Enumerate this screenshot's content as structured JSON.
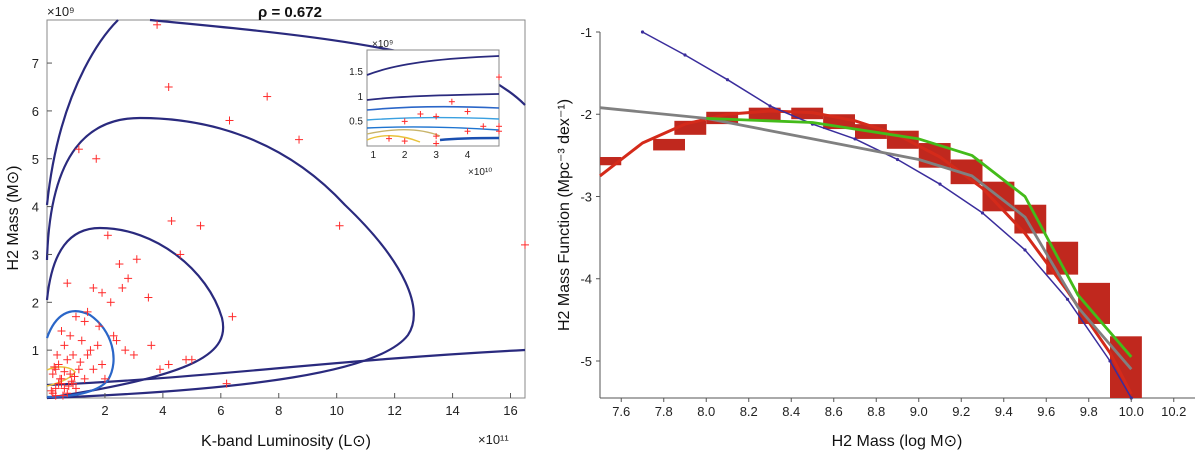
{
  "chart_data": [
    {
      "type": "scatter",
      "title": "ρ = 0.672",
      "xlabel": "K-band Luminosity (L⊙)",
      "ylabel": "H2 Mass (M⊙)",
      "x_exponent": "×10¹¹",
      "y_exponent": "×10⁹",
      "xlim": [
        0,
        16.5
      ],
      "ylim": [
        0,
        7.9
      ],
      "xticks": [
        "2",
        "4",
        "6",
        "8",
        "10",
        "12",
        "14",
        "16"
      ],
      "yticks": [
        "1",
        "2",
        "3",
        "4",
        "5",
        "6",
        "7"
      ],
      "grid": false,
      "colors": {
        "points": "#ff2a2a",
        "outer_contour": "#2a2a7e",
        "inner_contour": "#2a66c8",
        "core_contour": "#e8c23a"
      },
      "series": [
        {
          "marker": "plus",
          "x": [
            3.8,
            4.2,
            1.1,
            1.7,
            6.3,
            7.6,
            8.7,
            10.1,
            16.5,
            4.3,
            5.3,
            6.4,
            2.1,
            4.6,
            3.1,
            2.5,
            2.8,
            2.6,
            3.5,
            1.6,
            1.9,
            2.2,
            1.4,
            0.7,
            1.0,
            1.3,
            0.5,
            0.8,
            1.8,
            2.4,
            3.0,
            6.2,
            5.0,
            4.2,
            3.6,
            3.9,
            4.8,
            2.7,
            1.2,
            1.5,
            0.9,
            0.6,
            0.4,
            0.3,
            0.2,
            0.7,
            1.1,
            0.5,
            1.6,
            2.0,
            0.3,
            0.8,
            0.4,
            1.3,
            0.6,
            0.9,
            1.9,
            0.2,
            0.5,
            1.0,
            0.7,
            2.3,
            1.4,
            0.35,
            0.45,
            0.25,
            0.6,
            0.85,
            1.15,
            0.15,
            0.55,
            0.75,
            1.75,
            0.3,
            0.95
          ],
          "y": [
            7.8,
            6.5,
            5.2,
            5.0,
            5.8,
            6.3,
            5.4,
            3.6,
            3.2,
            3.7,
            3.6,
            1.7,
            3.4,
            3.0,
            2.9,
            2.8,
            2.5,
            2.3,
            2.1,
            2.3,
            2.2,
            2.0,
            1.8,
            2.4,
            1.7,
            1.6,
            1.4,
            1.3,
            1.5,
            1.2,
            0.9,
            0.3,
            0.8,
            0.7,
            1.1,
            0.6,
            0.8,
            1.0,
            1.2,
            1.0,
            0.9,
            1.1,
            0.7,
            0.6,
            0.5,
            0.8,
            0.6,
            0.3,
            0.6,
            0.4,
            0.2,
            0.5,
            0.3,
            0.4,
            0.2,
            0.3,
            0.7,
            0.1,
            0.4,
            0.2,
            0.1,
            1.3,
            0.9,
            0.9,
            0.4,
            0.65,
            0.55,
            0.35,
            0.75,
            0.15,
            0.05,
            0.25,
            1.1,
            0.05,
            0.45
          ]
        }
      ],
      "inset": {
        "x_exponent": "×10¹⁰",
        "y_exponent": "×10⁹",
        "xlim": [
          0.8,
          5.0
        ],
        "ylim": [
          0,
          1.95
        ],
        "xticks": [
          "1",
          "2",
          "3",
          "4"
        ],
        "yticks": [
          "0.5",
          "1",
          "1.5"
        ]
      }
    },
    {
      "type": "line",
      "xlabel": "H2 Mass (log M⊙)",
      "ylabel": "H2 Mass Function (Mpc⁻³ dex⁻¹)",
      "xlim": [
        7.5,
        10.3
      ],
      "ylim": [
        -5.45,
        -1.0
      ],
      "xticks": [
        "7.6",
        "7.8",
        "8.0",
        "8.2",
        "8.4",
        "8.6",
        "8.8",
        "9.0",
        "9.2",
        "9.4",
        "9.6",
        "9.8",
        "10.0",
        "10.2"
      ],
      "yticks": [
        "-1",
        "-2",
        "-3",
        "-4",
        "-5"
      ],
      "grid": false,
      "series": [
        {
          "style": "red-bins",
          "color": "#c0281e",
          "bins": [
            [
              7.5,
              -2.62,
              -2.52
            ],
            [
              7.75,
              -2.44,
              -2.3
            ],
            [
              7.85,
              -2.25,
              -2.08
            ],
            [
              8.0,
              -2.12,
              -1.97
            ],
            [
              8.2,
              -2.08,
              -1.92
            ],
            [
              8.4,
              -2.06,
              -1.92
            ],
            [
              8.55,
              -2.18,
              -2.0
            ],
            [
              8.7,
              -2.3,
              -2.12
            ],
            [
              8.85,
              -2.42,
              -2.2
            ],
            [
              9.0,
              -2.65,
              -2.35
            ],
            [
              9.15,
              -2.85,
              -2.55
            ],
            [
              9.3,
              -3.18,
              -2.82
            ],
            [
              9.45,
              -3.45,
              -3.1
            ],
            [
              9.6,
              -3.95,
              -3.55
            ],
            [
              9.75,
              -4.55,
              -4.05
            ],
            [
              9.9,
              -5.45,
              -4.7
            ]
          ]
        },
        {
          "style": "fit",
          "color": "#d42a1a",
          "x": [
            7.5,
            7.7,
            7.9,
            8.1,
            8.3,
            8.5,
            8.7,
            8.9,
            9.1,
            9.3,
            9.5,
            9.7,
            9.9,
            10.0
          ],
          "y": [
            -2.75,
            -2.35,
            -2.12,
            -2.0,
            -1.96,
            -1.98,
            -2.08,
            -2.25,
            -2.52,
            -2.9,
            -3.45,
            -4.15,
            -4.9,
            -5.4
          ]
        },
        {
          "style": "model",
          "color": "#3a2d9c",
          "x": [
            7.7,
            7.9,
            8.1,
            8.3,
            8.5,
            8.7,
            8.9,
            9.1,
            9.3,
            9.5,
            9.7,
            9.9,
            10.0
          ],
          "y": [
            -1.0,
            -1.28,
            -1.58,
            -1.9,
            -2.12,
            -2.3,
            -2.55,
            -2.85,
            -3.2,
            -3.65,
            -4.25,
            -5.0,
            -5.45
          ]
        },
        {
          "style": "model",
          "color": "#808080",
          "x": [
            7.5,
            8.0,
            8.5,
            9.0,
            9.25,
            9.5,
            9.75,
            10.0
          ],
          "y": [
            -1.92,
            -2.05,
            -2.3,
            -2.55,
            -2.75,
            -3.25,
            -4.35,
            -5.1
          ]
        },
        {
          "style": "model",
          "color": "#44bb1a",
          "x": [
            8.0,
            8.5,
            9.0,
            9.25,
            9.5,
            9.75,
            10.0
          ],
          "y": [
            -2.05,
            -2.1,
            -2.3,
            -2.5,
            -3.0,
            -4.2,
            -4.95
          ]
        }
      ]
    }
  ]
}
